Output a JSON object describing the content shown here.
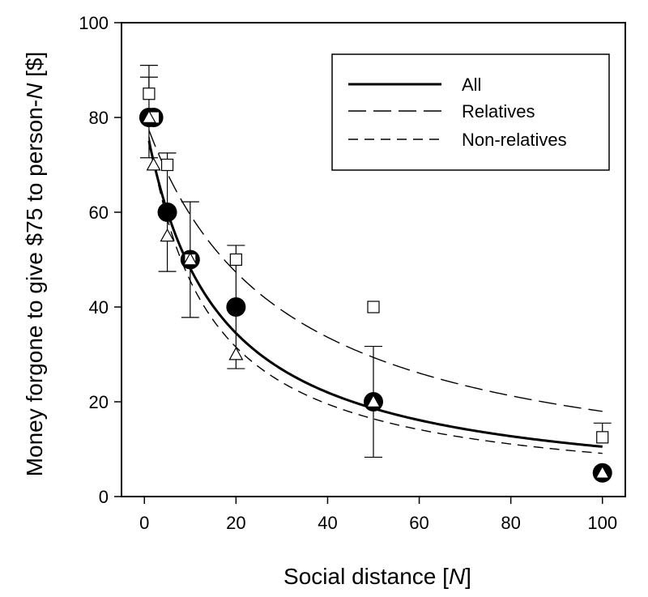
{
  "chart_data": {
    "type": "scatter",
    "x_label": {
      "prefix": "Social distance [",
      "italic": "N",
      "suffix": "]"
    },
    "y_label": {
      "prefix": "Money forgone to give $75 to person-",
      "italic": "N",
      "suffix": " [$]"
    },
    "xlim": [
      -5,
      105
    ],
    "ylim": [
      0,
      100
    ],
    "x_ticks": [
      "0",
      "20",
      "40",
      "60",
      "80",
      "100"
    ],
    "y_ticks": [
      "0",
      "20",
      "40",
      "60",
      "80",
      "100"
    ],
    "legend": {
      "placement": "top-right",
      "entries": [
        {
          "label": "All",
          "style": "solid-thick"
        },
        {
          "label": "Relatives",
          "style": "long-dash"
        },
        {
          "label": "Non-relatives",
          "style": "short-dash"
        }
      ]
    },
    "series": [
      {
        "name": "All",
        "marker": "filled-circle",
        "x": [
          1,
          2,
          5,
          10,
          20,
          50,
          100
        ],
        "y": [
          80,
          80,
          60,
          50,
          40,
          20,
          5
        ],
        "error_low": [
          71.5,
          null,
          47.5,
          37.8,
          27,
          8.3,
          null
        ],
        "error_high": [
          88.5,
          null,
          72.5,
          62.2,
          53,
          31.7,
          null
        ],
        "fit": {
          "type": "hyperbolic",
          "V": 80,
          "k": 0.066
        }
      },
      {
        "name": "Relatives",
        "marker": "open-square",
        "x": [
          1,
          2,
          5,
          10,
          20,
          50,
          100
        ],
        "y": [
          85,
          80,
          70,
          50,
          50,
          40,
          12.5
        ],
        "error_low": [
          null,
          null,
          null,
          null,
          null,
          null,
          null
        ],
        "error_high": [
          91,
          null,
          null,
          null,
          null,
          null,
          15.5
        ],
        "fit": {
          "type": "hyperbolic",
          "V": 80,
          "k": 0.0345
        }
      },
      {
        "name": "Non-relatives",
        "marker": "open-triangle",
        "x": [
          1,
          2,
          5,
          10,
          20,
          50,
          100
        ],
        "y": [
          80,
          70,
          55,
          50,
          30,
          20,
          5
        ],
        "error_low": [
          null,
          null,
          null,
          null,
          null,
          null,
          null
        ],
        "error_high": [
          null,
          null,
          null,
          null,
          null,
          null,
          null
        ],
        "fit": {
          "type": "hyperbolic",
          "V": 82,
          "k": 0.08
        }
      }
    ]
  }
}
